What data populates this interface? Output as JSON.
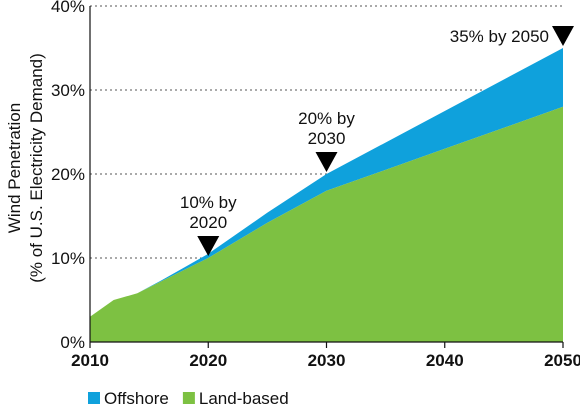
{
  "chart_data": {
    "type": "area",
    "x": [
      2010,
      2012,
      2014,
      2016,
      2018,
      2020,
      2025,
      2030,
      2040,
      2050
    ],
    "series": [
      {
        "name": "Land-based",
        "color": "#7dc142",
        "values": [
          3,
          5,
          5.8,
          7.2,
          8.6,
          10,
          14.2,
          18,
          23,
          28
        ]
      },
      {
        "name": "Offshore",
        "color": "#0fa1dc",
        "values": [
          0,
          0,
          0,
          0.1,
          0.3,
          0.5,
          1.2,
          2,
          4.5,
          7
        ]
      }
    ],
    "xticks": [
      "2010",
      "2020",
      "2030",
      "2040",
      "2050"
    ],
    "yticks": [
      "0%",
      "10%",
      "20%",
      "30%",
      "40%"
    ],
    "ylabel_line1": "Wind Penetration",
    "ylabel_line2": "(% of U.S. Electricity Demand)",
    "xlim": [
      2010,
      2050
    ],
    "ylim": [
      0,
      40
    ],
    "grid": "horizontal dotted",
    "legend_position": "bottom",
    "annotations": [
      {
        "x": 2020,
        "y": 10,
        "line1": "10% by",
        "line2": "2020"
      },
      {
        "x": 2030,
        "y": 20,
        "line1": "20% by",
        "line2": "2030"
      },
      {
        "x": 2050,
        "y": 35,
        "line1": "35% by 2050",
        "line2": ""
      }
    ]
  }
}
